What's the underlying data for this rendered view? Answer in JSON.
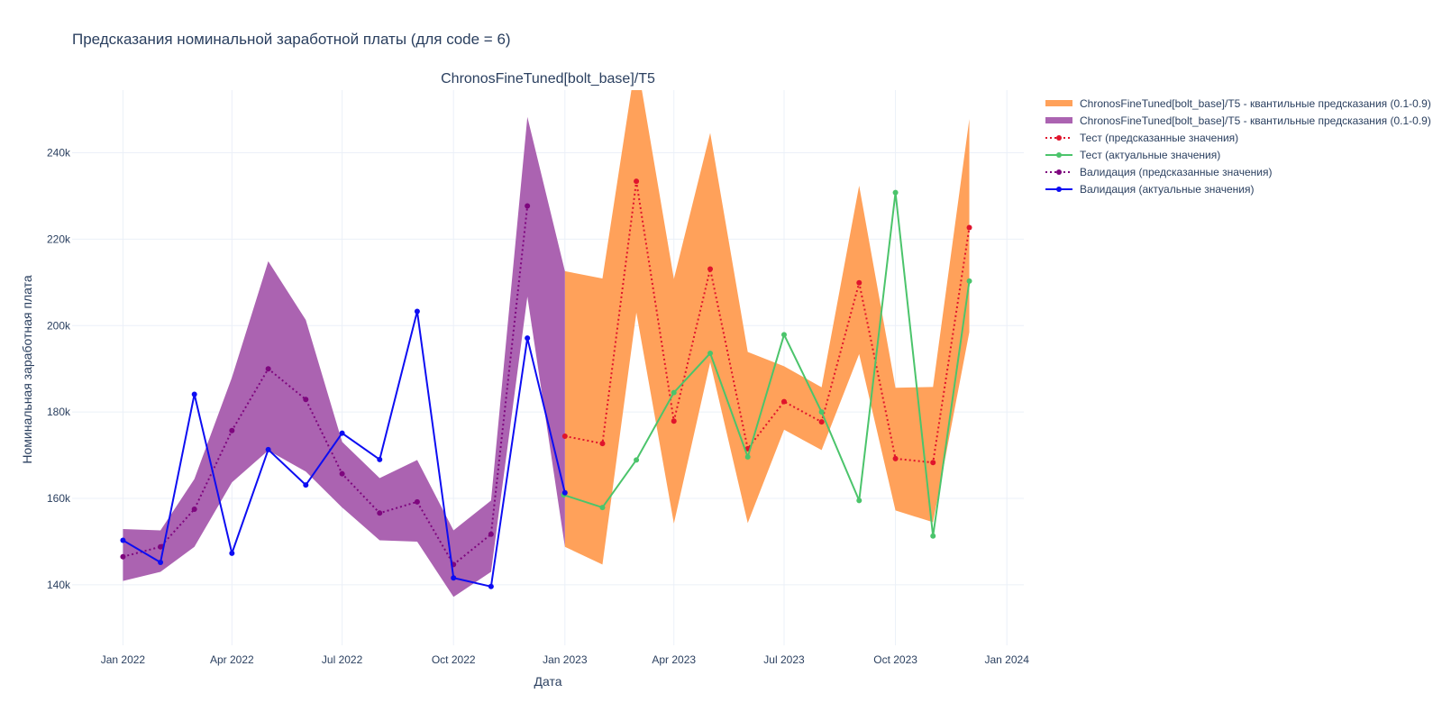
{
  "title": "Предсказания номинальной заработной платы (для code = 6)",
  "chart_data": {
    "type": "line",
    "subplot_title": "ChronosFineTuned[bolt_base]/T5",
    "xlabel": "Дата",
    "ylabel": "Номинальная заработная плата",
    "x_tick_labels": [
      "Jan 2022",
      "Apr 2022",
      "Jul 2022",
      "Oct 2022",
      "Jan 2023",
      "Apr 2023",
      "Jul 2023",
      "Oct 2023",
      "Jan 2024"
    ],
    "x_range": [
      "2021-11-20",
      "2024-01-15"
    ],
    "y_tick_labels": [
      "140k",
      "160k",
      "180k",
      "200k",
      "220k",
      "240k"
    ],
    "ylim": [
      126000,
      254500
    ],
    "grid": true,
    "legend_position": "top-right (outside plot)",
    "bands": [
      {
        "name": "ChronosFineTuned[bolt_base]/T5 - квантильные предсказания (0.1-0.9)",
        "color": "#ffa15a",
        "x": [
          "2023-01-01",
          "2023-02-01",
          "2023-03-01",
          "2023-04-01",
          "2023-05-01",
          "2023-06-01",
          "2023-07-01",
          "2023-08-01",
          "2023-09-01",
          "2023-10-01",
          "2023-11-01",
          "2023-12-01"
        ],
        "lower": [
          148800,
          144700,
          203000,
          154200,
          191500,
          154300,
          175900,
          171200,
          193400,
          157200,
          154500,
          198500
        ],
        "upper": [
          212600,
          210900,
          262000,
          210800,
          244600,
          193900,
          190600,
          185700,
          232400,
          185600,
          185800,
          247800
        ]
      },
      {
        "name": "ChronosFineTuned[bolt_base]/T5 - квантильные предсказания (0.1-0.9)",
        "color": "#ab63b1",
        "x": [
          "2022-01-01",
          "2022-02-01",
          "2022-03-01",
          "2022-04-01",
          "2022-05-01",
          "2022-06-01",
          "2022-07-01",
          "2022-08-01",
          "2022-09-01",
          "2022-10-01",
          "2022-11-01",
          "2022-12-01",
          "2023-01-01"
        ],
        "lower": [
          140900,
          143000,
          148800,
          163700,
          171100,
          166200,
          157900,
          150300,
          150000,
          137200,
          143000,
          206700,
          148800
        ],
        "upper": [
          152900,
          152600,
          164500,
          188000,
          214900,
          201300,
          173100,
          164700,
          168900,
          152600,
          159500,
          248300,
          212600
        ]
      }
    ],
    "series": [
      {
        "name": "Тест (предсказанные значения)",
        "color": "#e0142c",
        "dash": "dot",
        "x": [
          "2023-01-01",
          "2023-02-01",
          "2023-03-01",
          "2023-04-01",
          "2023-05-01",
          "2023-06-01",
          "2023-07-01",
          "2023-08-01",
          "2023-09-01",
          "2023-10-01",
          "2023-11-01",
          "2023-12-01"
        ],
        "values": [
          174400,
          172700,
          233400,
          177900,
          213100,
          171500,
          182400,
          177700,
          209900,
          169200,
          168300,
          222700
        ]
      },
      {
        "name": "Тест (актуальные значения)",
        "color": "#4bc46b",
        "dash": "solid",
        "x": [
          "2022-12-31",
          "2023-02-01",
          "2023-03-01",
          "2023-04-01",
          "2023-05-01",
          "2023-06-01",
          "2023-07-01",
          "2023-08-01",
          "2023-09-01",
          "2023-10-01",
          "2023-11-01",
          "2023-12-01"
        ],
        "values": [
          160800,
          157900,
          168900,
          184500,
          193600,
          169600,
          197900,
          180000,
          159500,
          230800,
          151300,
          210300
        ]
      },
      {
        "name": "Валидация (предсказанные значения)",
        "color": "#7e067e",
        "dash": "dot",
        "x": [
          "2022-01-01",
          "2022-02-01",
          "2022-03-01",
          "2022-04-01",
          "2022-05-01",
          "2022-06-01",
          "2022-07-01",
          "2022-08-01",
          "2022-09-01",
          "2022-10-01",
          "2022-11-01",
          "2022-12-01"
        ],
        "values": [
          146500,
          148800,
          157500,
          175700,
          190000,
          182900,
          165700,
          156600,
          159200,
          144700,
          151700,
          227700
        ]
      },
      {
        "name": "Валидация (актуальные значения)",
        "color": "#0d0df2",
        "dash": "solid",
        "x": [
          "2022-01-01",
          "2022-02-01",
          "2022-03-01",
          "2022-04-01",
          "2022-05-01",
          "2022-06-01",
          "2022-07-01",
          "2022-08-01",
          "2022-09-01",
          "2022-10-01",
          "2022-11-01",
          "2022-12-01",
          "2023-01-01"
        ],
        "values": [
          150300,
          145200,
          184100,
          147300,
          171300,
          163100,
          175100,
          169000,
          203300,
          141600,
          139600,
          197100,
          161300
        ]
      }
    ]
  }
}
